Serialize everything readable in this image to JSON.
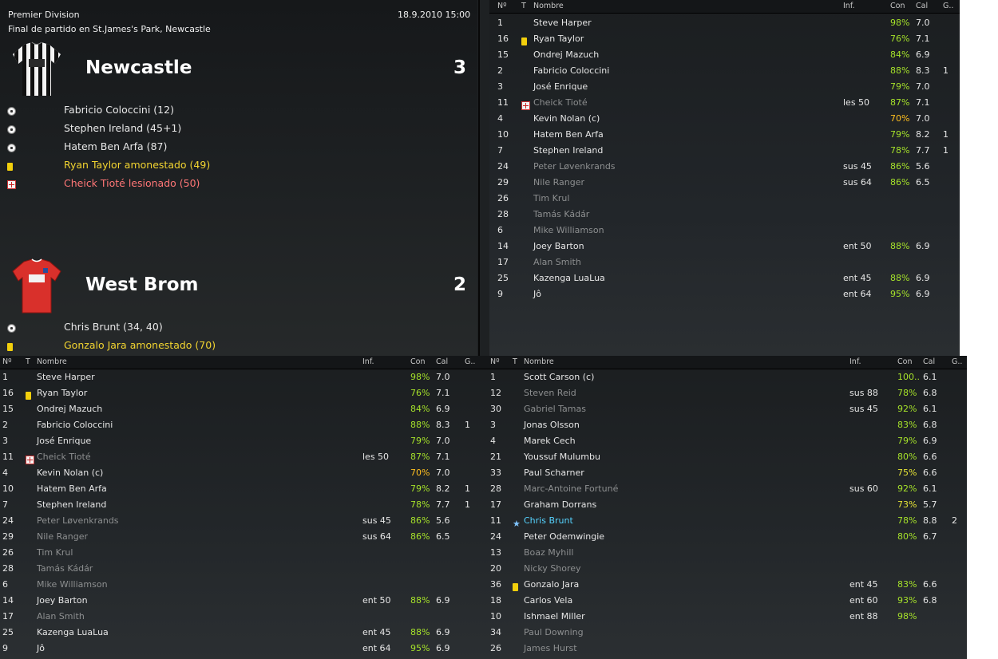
{
  "match": {
    "competition": "Premier Division",
    "venue_line": "Final de partido en St.James's Park, Newcastle",
    "datetime": "18.9.2010 15:00"
  },
  "home": {
    "name": "Newcastle",
    "score": "3",
    "kit_icon": "striped-shirt-icon",
    "events": [
      {
        "type": "goal",
        "icon": "ball-icon",
        "text": "Fabricio Coloccini (12)"
      },
      {
        "type": "goal",
        "icon": "ball-icon",
        "text": "Stephen Ireland (45+1)"
      },
      {
        "type": "goal",
        "icon": "ball-icon",
        "text": "Hatem Ben Arfa (87)"
      },
      {
        "type": "yellow",
        "icon": "yellow-card-icon",
        "text": "Ryan Taylor amonestado (49)"
      },
      {
        "type": "injury",
        "icon": "injury-icon",
        "text": "Cheick Tioté lesionado (50)"
      }
    ]
  },
  "away": {
    "name": "West Brom",
    "score": "2",
    "kit_icon": "red-shirt-icon",
    "events": [
      {
        "type": "goal",
        "icon": "ball-icon",
        "text": "Chris Brunt (34, 40)"
      },
      {
        "type": "yellow",
        "icon": "yellow-card-icon",
        "text": "Gonzalo Jara amonestado (70)"
      }
    ]
  },
  "columns": {
    "num": "Nº",
    "t": "T",
    "name": "Nombre",
    "inf": "Inf.",
    "con": "Con",
    "cal": "Cal",
    "g": "G.."
  },
  "colors": {
    "con_green": "#a6e22a",
    "con_orange": "#ffbf1f",
    "yellow_card": "#f2cf0c",
    "injury": "#ff7676",
    "highlight": "#56d3ff"
  },
  "home_players": [
    {
      "num": "1",
      "t": "",
      "name": "Steve Harper",
      "inf": "",
      "con": "98%",
      "cal": "7.0",
      "g": "",
      "dim": false
    },
    {
      "num": "16",
      "t": "yellow",
      "name": "Ryan Taylor",
      "inf": "",
      "con": "76%",
      "cal": "7.1",
      "g": "",
      "dim": false
    },
    {
      "num": "15",
      "t": "",
      "name": "Ondrej Mazuch",
      "inf": "",
      "con": "84%",
      "cal": "6.9",
      "g": "",
      "dim": false
    },
    {
      "num": "2",
      "t": "",
      "name": "Fabricio Coloccini",
      "inf": "",
      "con": "88%",
      "cal": "8.3",
      "g": "1",
      "dim": false
    },
    {
      "num": "3",
      "t": "",
      "name": "José Enrique",
      "inf": "",
      "con": "79%",
      "cal": "7.0",
      "g": "",
      "dim": false
    },
    {
      "num": "11",
      "t": "injury",
      "name": "Cheick Tioté",
      "inf": "les 50",
      "con": "87%",
      "cal": "7.1",
      "g": "",
      "dim": true
    },
    {
      "num": "4",
      "t": "",
      "name": "Kevin Nolan (c)",
      "inf": "",
      "con": "70%",
      "cal": "7.0",
      "g": "",
      "dim": false,
      "con_level": "orange"
    },
    {
      "num": "10",
      "t": "",
      "name": "Hatem Ben Arfa",
      "inf": "",
      "con": "79%",
      "cal": "8.2",
      "g": "1",
      "dim": false
    },
    {
      "num": "7",
      "t": "",
      "name": "Stephen Ireland",
      "inf": "",
      "con": "78%",
      "cal": "7.7",
      "g": "1",
      "dim": false
    },
    {
      "num": "24",
      "t": "",
      "name": "Peter Løvenkrands",
      "inf": "sus 45",
      "con": "86%",
      "cal": "5.6",
      "g": "",
      "dim": true
    },
    {
      "num": "29",
      "t": "",
      "name": "Nile Ranger",
      "inf": "sus 64",
      "con": "86%",
      "cal": "6.5",
      "g": "",
      "dim": true
    },
    {
      "num": "26",
      "t": "",
      "name": "Tim Krul",
      "inf": "",
      "con": "",
      "cal": "",
      "g": "",
      "dim": true
    },
    {
      "num": "28",
      "t": "",
      "name": "Tamás Kádár",
      "inf": "",
      "con": "",
      "cal": "",
      "g": "",
      "dim": true
    },
    {
      "num": "6",
      "t": "",
      "name": "Mike Williamson",
      "inf": "",
      "con": "",
      "cal": "",
      "g": "",
      "dim": true
    },
    {
      "num": "14",
      "t": "",
      "name": "Joey Barton",
      "inf": "ent 50",
      "con": "88%",
      "cal": "6.9",
      "g": "",
      "dim": false
    },
    {
      "num": "17",
      "t": "",
      "name": "Alan Smith",
      "inf": "",
      "con": "",
      "cal": "",
      "g": "",
      "dim": true
    },
    {
      "num": "25",
      "t": "",
      "name": "Kazenga LuaLua",
      "inf": "ent 45",
      "con": "88%",
      "cal": "6.9",
      "g": "",
      "dim": false
    },
    {
      "num": "9",
      "t": "",
      "name": "Jô",
      "inf": "ent 64",
      "con": "95%",
      "cal": "6.9",
      "g": "",
      "dim": false
    }
  ],
  "away_players": [
    {
      "num": "1",
      "t": "",
      "name": "Scott Carson (c)",
      "inf": "",
      "con": "100..",
      "cal": "6.1",
      "g": "",
      "dim": false
    },
    {
      "num": "12",
      "t": "",
      "name": "Steven Reid",
      "inf": "sus 88",
      "con": "78%",
      "cal": "6.8",
      "g": "",
      "dim": true
    },
    {
      "num": "30",
      "t": "",
      "name": "Gabriel Tamas",
      "inf": "sus 45",
      "con": "92%",
      "cal": "6.1",
      "g": "",
      "dim": true
    },
    {
      "num": "3",
      "t": "",
      "name": "Jonas Olsson",
      "inf": "",
      "con": "83%",
      "cal": "6.8",
      "g": "",
      "dim": false
    },
    {
      "num": "4",
      "t": "",
      "name": "Marek Cech",
      "inf": "",
      "con": "79%",
      "cal": "6.9",
      "g": "",
      "dim": false
    },
    {
      "num": "21",
      "t": "",
      "name": "Youssuf Mulumbu",
      "inf": "",
      "con": "80%",
      "cal": "6.6",
      "g": "",
      "dim": false
    },
    {
      "num": "33",
      "t": "",
      "name": "Paul Scharner",
      "inf": "",
      "con": "75%",
      "cal": "6.6",
      "g": "",
      "dim": false,
      "con_level": "yellow"
    },
    {
      "num": "28",
      "t": "",
      "name": "Marc-Antoine Fortuné",
      "inf": "sus 60",
      "con": "92%",
      "cal": "6.1",
      "g": "",
      "dim": true
    },
    {
      "num": "17",
      "t": "",
      "name": "Graham Dorrans",
      "inf": "",
      "con": "73%",
      "cal": "5.7",
      "g": "",
      "dim": false,
      "con_level": "yellow"
    },
    {
      "num": "11",
      "t": "star",
      "name": "Chris Brunt",
      "inf": "",
      "con": "78%",
      "cal": "8.8",
      "g": "2",
      "dim": false,
      "highlight": true
    },
    {
      "num": "24",
      "t": "",
      "name": "Peter Odemwingie",
      "inf": "",
      "con": "80%",
      "cal": "6.7",
      "g": "",
      "dim": false
    },
    {
      "num": "13",
      "t": "",
      "name": "Boaz Myhill",
      "inf": "",
      "con": "",
      "cal": "",
      "g": "",
      "dim": true
    },
    {
      "num": "20",
      "t": "",
      "name": "Nicky Shorey",
      "inf": "",
      "con": "",
      "cal": "",
      "g": "",
      "dim": true
    },
    {
      "num": "36",
      "t": "yellow",
      "name": "Gonzalo Jara",
      "inf": "ent 45",
      "con": "83%",
      "cal": "6.6",
      "g": "",
      "dim": false
    },
    {
      "num": "18",
      "t": "",
      "name": "Carlos Vela",
      "inf": "ent 60",
      "con": "93%",
      "cal": "6.8",
      "g": "",
      "dim": false
    },
    {
      "num": "10",
      "t": "",
      "name": "Ishmael Miller",
      "inf": "ent 88",
      "con": "98%",
      "cal": "",
      "g": "",
      "dim": false
    },
    {
      "num": "34",
      "t": "",
      "name": "Paul Downing",
      "inf": "",
      "con": "",
      "cal": "",
      "g": "",
      "dim": true
    },
    {
      "num": "26",
      "t": "",
      "name": "James Hurst",
      "inf": "",
      "con": "",
      "cal": "",
      "g": "",
      "dim": true
    }
  ]
}
